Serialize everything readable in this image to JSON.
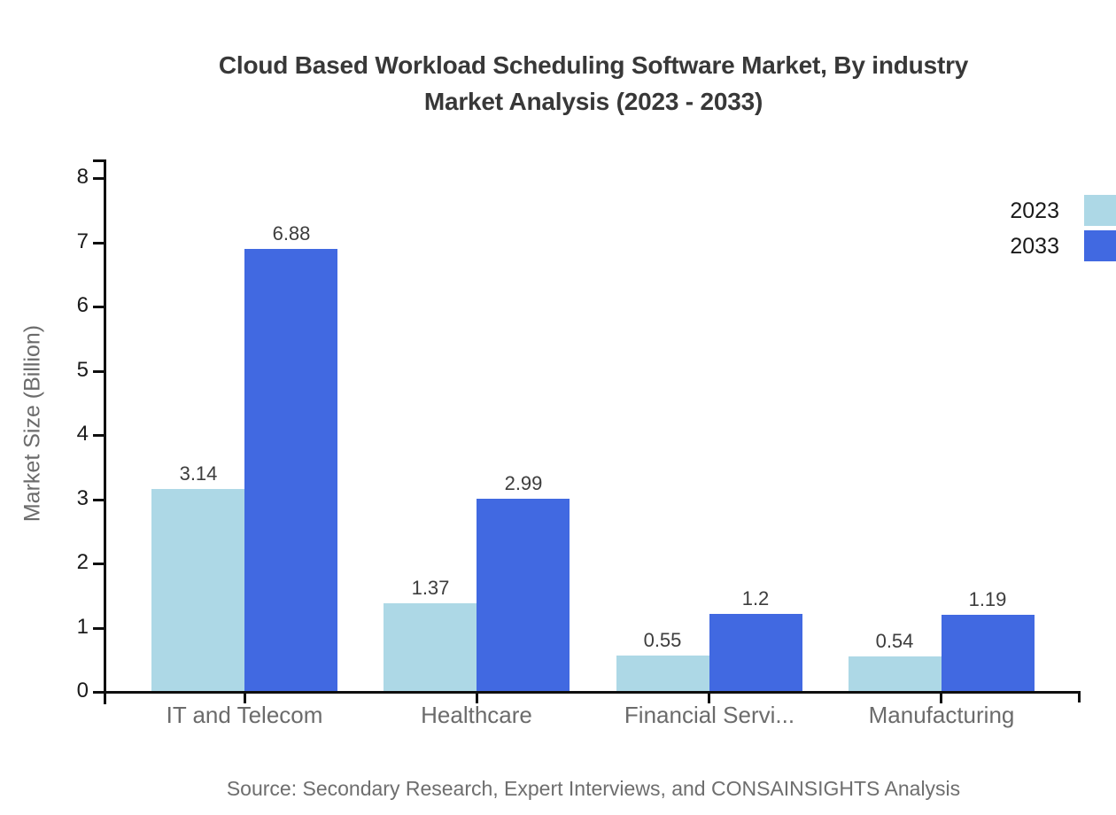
{
  "chart": {
    "title_line1": "Cloud Based Workload Scheduling Software Market, By industry",
    "title_line2": "Market Analysis (2023 - 2033)",
    "source": "Source: Secondary Research, Expert Interviews, and CONSAINSIGHTS Analysis"
  },
  "chart_data": {
    "type": "bar",
    "title": "Cloud Based Workload Scheduling Software Market, By industry Market Analysis (2023 - 2033)",
    "xlabel": "",
    "ylabel": "Market Size (Billion)",
    "ylim": [
      0,
      8
    ],
    "yticks": [
      0,
      1,
      2,
      3,
      4,
      5,
      6,
      7,
      8
    ],
    "grid": false,
    "legend_position": "right-edge-top",
    "categories": [
      "IT and Telecom",
      "Healthcare",
      "Financial Servi...",
      "Manufacturing"
    ],
    "series": [
      {
        "name": "2023",
        "color": "#ADD8E6",
        "values": [
          3.14,
          1.37,
          0.55,
          0.54
        ],
        "value_labels": [
          "3.14",
          "1.37",
          "0.55",
          "0.54"
        ]
      },
      {
        "name": "2033",
        "color": "#4169E1",
        "values": [
          6.88,
          2.99,
          1.2,
          1.19
        ],
        "value_labels": [
          "6.88",
          "2.99",
          "1.2",
          "1.19"
        ]
      }
    ],
    "colors": {
      "axis": "#0f0f0f",
      "tick_label": "#1a1a1a",
      "category_label": "#6b6b6b",
      "value_label": "#3d3d3d",
      "title": "#383838",
      "source": "#6e6e6e",
      "background": "#ffffff"
    }
  }
}
